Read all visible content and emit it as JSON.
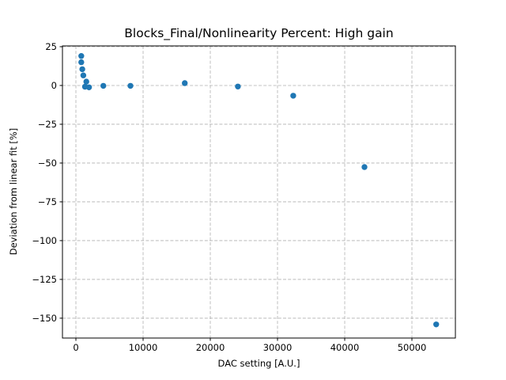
{
  "figure": {
    "title": "Blocks_Final/Nonlinearity Percent: High gain",
    "xlabel": "DAC setting [A.U.]",
    "ylabel": "Deviation from linear fit [%]",
    "background_color": "#ffffff"
  },
  "chart_data": {
    "type": "scatter",
    "title": "Blocks_Final/Nonlinearity Percent: High gain",
    "xlabel": "DAC setting [A.U.]",
    "ylabel": "Deviation from linear fit [%]",
    "marker": "circle",
    "marker_color": "#1f77b4",
    "marker_radius_px": 3.7,
    "grid": true,
    "grid_style": "dashed",
    "grid_color": "#b0b0b0",
    "frame_color": "#000000",
    "legend": false,
    "xlim": [
      -2000,
      56470
    ],
    "ylim": [
      -162.8,
      25.5
    ],
    "x_ticks": [
      0,
      10000,
      20000,
      30000,
      40000,
      50000
    ],
    "y_ticks": [
      25,
      0,
      -25,
      -50,
      -75,
      -100,
      -125,
      -150
    ],
    "points": [
      {
        "x": 800,
        "y": 19.0
      },
      {
        "x": 800,
        "y": 15.0
      },
      {
        "x": 950,
        "y": 10.5
      },
      {
        "x": 1100,
        "y": 6.5
      },
      {
        "x": 1550,
        "y": 2.5
      },
      {
        "x": 1350,
        "y": -0.8
      },
      {
        "x": 1950,
        "y": -1.2
      },
      {
        "x": 4080,
        "y": -0.2
      },
      {
        "x": 8120,
        "y": -0.2
      },
      {
        "x": 16200,
        "y": 1.5
      },
      {
        "x": 24100,
        "y": -0.7
      },
      {
        "x": 32340,
        "y": -6.6
      },
      {
        "x": 42940,
        "y": -52.6
      },
      {
        "x": 53610,
        "y": -154.0
      }
    ]
  }
}
